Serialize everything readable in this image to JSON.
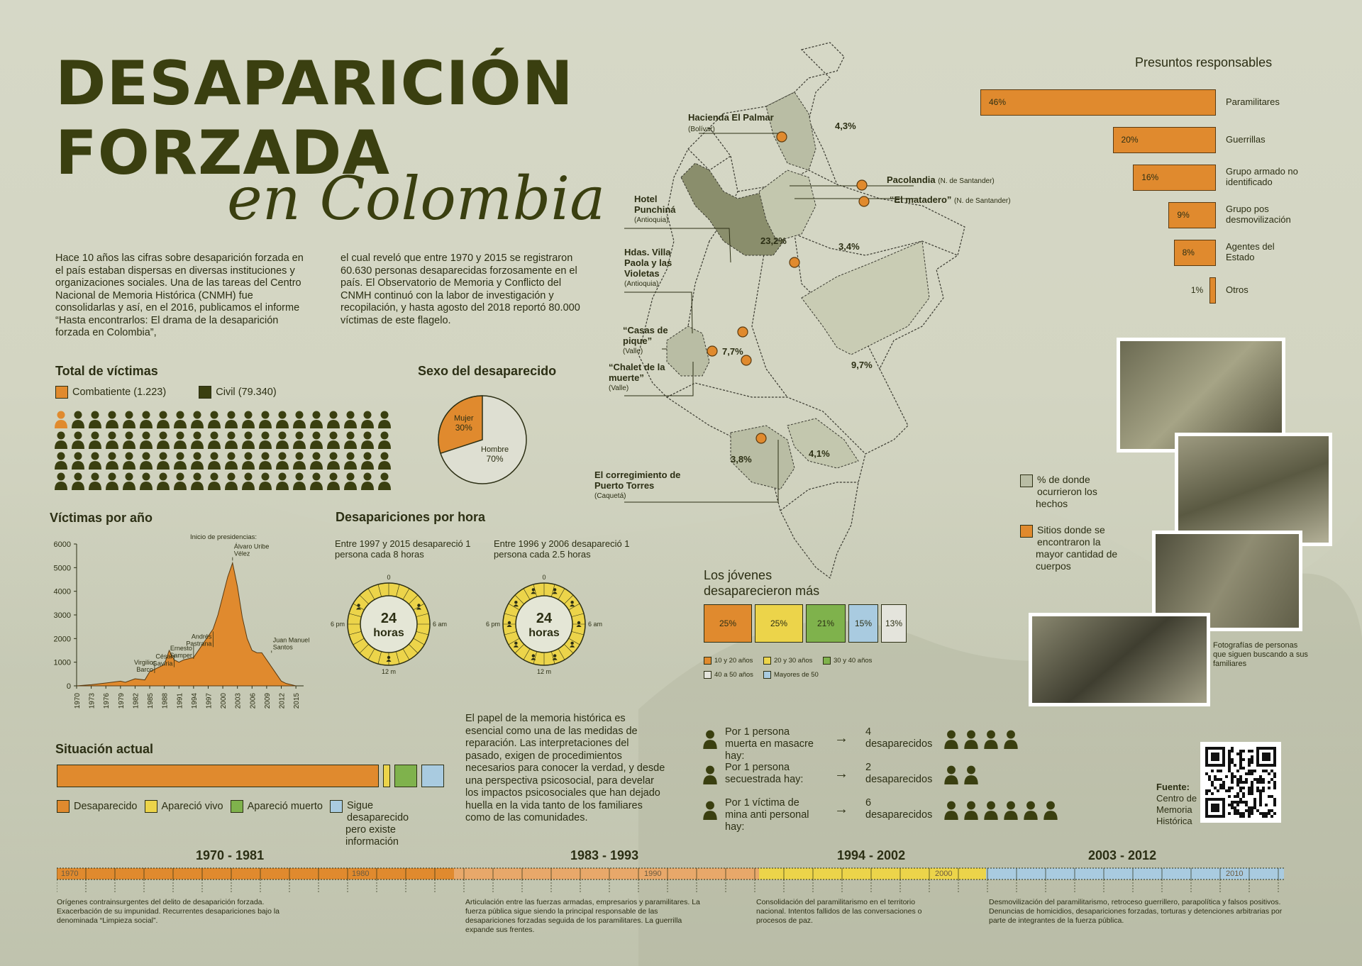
{
  "title": {
    "line1": "DESAPARICIÓN",
    "line2": "FORZADA",
    "line3": "en Colombia"
  },
  "intro": {
    "col1": "Hace 10 años las cifras sobre desaparición forzada en el país estaban dispersas en diversas instituciones y organizaciones sociales. Una de las tareas del Centro Nacional de Memoria Histórica (CNMH) fue consolidarlas y así, en el 2016, publicamos el informe “Hasta encontrarlos: El drama de la desaparición forzada en Colombia”,",
    "col2": "el cual reveló que entre 1970 y 2015 se registraron 60.630 personas desaparecidas forzosamente en el país. El Observatorio de Memoria y Conflicto del CNMH continuó con la labor de investigación y recopilación, y hasta agosto del 2018 reportó 80.000 víctimas de este flagelo."
  },
  "total": {
    "title": "Total de víctimas",
    "combatiente": "Combatiente",
    "combatiente_n": "(1.223)",
    "civil": "Civil",
    "civil_n": "(79.340)"
  },
  "sexo": {
    "title": "Sexo del desaparecido",
    "mujer": "Mujer",
    "mujer_pct": "30%",
    "hombre": "Hombre",
    "hombre_pct": "70%",
    "mujer_value": 30
  },
  "victimas_anio": {
    "title": "Víctimas por año",
    "subtitle": "Inicio de presidencias:",
    "yticks": [
      "6000",
      "5000",
      "4000",
      "3000",
      "2000",
      "1000",
      "0"
    ],
    "xticks": [
      "1970",
      "1973",
      "1976",
      "1979",
      "1982",
      "1985",
      "1988",
      "1991",
      "1994",
      "1997",
      "2000",
      "2003",
      "2006",
      "2009",
      "2012",
      "2015"
    ],
    "presidents": [
      "Virgilio Barco",
      "César Gaviria",
      "Ernesto Samper",
      "Andrés Pastrana",
      "Álvaro Uribe Vélez",
      "Juan Manuel Santos"
    ]
  },
  "chart_data": {
    "type": "area",
    "title": "Víctimas por año",
    "x": [
      1970,
      1973,
      1976,
      1979,
      1980,
      1982,
      1984,
      1985,
      1986,
      1988,
      1989,
      1990,
      1991,
      1992,
      1994,
      1996,
      1998,
      1999,
      2000,
      2001,
      2002,
      2003,
      2004,
      2005,
      2006,
      2007,
      2008,
      2009,
      2010,
      2011,
      2012,
      2013,
      2015
    ],
    "values": [
      0,
      50,
      120,
      200,
      150,
      300,
      250,
      600,
      700,
      900,
      1500,
      1100,
      1000,
      1100,
      1200,
      1800,
      2400,
      3000,
      3800,
      4600,
      5200,
      4200,
      2900,
      2000,
      1500,
      1400,
      1400,
      1100,
      800,
      500,
      200,
      100,
      0
    ],
    "ylim": [
      0,
      6000
    ]
  },
  "por_hora": {
    "title": "Desapariciones por hora",
    "left_text": "Entre 1997 y 2015 desapareció 1 persona cada 8 horas",
    "right_text": "Entre 1996 y 2006 desapareció 1 persona cada 2.5 horas",
    "clock_big": "24",
    "clock_small": "horas",
    "top": "0",
    "left": "6 pm",
    "right": "6 am",
    "bottom": "12 m"
  },
  "responsables": {
    "title": "Presuntos responsables",
    "items": [
      {
        "label": "Paramilitares",
        "pct": "46%",
        "value": 46
      },
      {
        "label": "Guerrillas",
        "pct": "20%",
        "value": 20
      },
      {
        "label": "Grupo armado no identificado",
        "pct": "16%",
        "value": 16
      },
      {
        "label": "Grupo pos desmovilización",
        "pct": "9%",
        "value": 9
      },
      {
        "label": "Agentes del Estado",
        "pct": "8%",
        "value": 8
      },
      {
        "label": "Otros",
        "pct": "1%",
        "value": 1
      }
    ]
  },
  "mapa": {
    "sites": [
      {
        "name": "Hacienda El Palmar",
        "dept": "(Bolívar)"
      },
      {
        "name": "Pacolandia",
        "dept": "(N. de Santander)"
      },
      {
        "name": "“El matadero”",
        "dept": "(N. de Santander)"
      },
      {
        "name": "Hotel Punchiná",
        "dept": "(Antioquia)"
      },
      {
        "name": "Hdas. Villa Paola y las Violetas",
        "dept": "(Antioquia)"
      },
      {
        "name": "“Casas de pique”",
        "dept": "(Valle)"
      },
      {
        "name": "“Chalet de la muerte”",
        "dept": "(Valle)"
      },
      {
        "name": "El corregimiento de Puerto Torres",
        "dept": "(Caquetá)"
      }
    ],
    "pcts": [
      "4,3%",
      "23,2%",
      "3,4%",
      "7,7%",
      "9,7%",
      "3,8%",
      "4,1%"
    ],
    "legend_pct": "% de donde ocurrieron los hechos",
    "legend_sites": "Sitios donde se encontraron la mayor cantidad de cuerpos"
  },
  "jovenes": {
    "title": "Los jóvenes desaparecieron más",
    "items": [
      {
        "pct": "25%",
        "label": "10 y 20 años",
        "color": "#e08a2e"
      },
      {
        "pct": "25%",
        "label": "20 y 30 años",
        "color": "#ecd44a"
      },
      {
        "pct": "21%",
        "label": "30 y 40 años",
        "color": "#7fb24c"
      },
      {
        "pct": "15%",
        "label": "Mayores de 50",
        "color": "#a9cbe0"
      },
      {
        "pct": "13%",
        "label": "40 a 50 años",
        "color": "#e4e4dc"
      }
    ]
  },
  "fotos": {
    "caption": "Fotografías de personas que siguen buscando a sus familiares"
  },
  "situacion": {
    "title": "Situación actual",
    "items": [
      {
        "label": "Desaparecido",
        "color": "#e08a2e"
      },
      {
        "label": "Apareció vivo",
        "color": "#ecd44a"
      },
      {
        "label": "Apareció muerto",
        "color": "#7fb24c"
      },
      {
        "label": "Sigue desaparecido pero existe información",
        "color": "#a9cbe0"
      }
    ]
  },
  "memoria": "El papel de la memoria histórica es esencial como una de las medidas de reparación. Las interpretaciones del pasado, exigen de procedimientos necesarios para conocer la verdad, y desde una perspectiva psicosocial, para develar los impactos psicosociales que han dejado huella en la vida tanto de los familiares como de las comunidades.",
  "ratios": [
    {
      "left": "Por 1 persona muerta en masacre hay:",
      "right": "4 desaparecidos",
      "n": 4
    },
    {
      "left": "Por 1 persona secuestrada hay:",
      "right": "2 desaparecidos",
      "n": 2
    },
    {
      "left": "Por 1 víctima de mina anti personal hay:",
      "right": "6 desaparecidos",
      "n": 6
    }
  ],
  "fuente": {
    "label": "Fuente:",
    "text": "Centro de Memoria Histórica"
  },
  "timeline": {
    "periods": [
      {
        "title": "1970 - 1981",
        "year": "1970",
        "decade": "1980",
        "desc": "Orígenes contrainsurgentes del delito de desaparición forzada. Exacerbación de su impunidad. Recurrentes desapariciones bajo la denominada “Limpieza social”."
      },
      {
        "title": "1983 - 1993",
        "year": "1990",
        "desc": "Articulación entre las fuerzas armadas, empresarios y paramilitares. La fuerza pública sigue siendo la principal responsable de las desapariciones forzadas seguida de los paramilitares. La guerrilla expande sus frentes."
      },
      {
        "title": "1994 - 2002",
        "year": "2000",
        "desc": "Consolidación del paramilitarismo en el territorio nacional. Intentos fallidos de las conversaciones o procesos de paz."
      },
      {
        "title": "2003 - 2012",
        "year": "2010",
        "desc": "Desmovilización del paramilitarismo, retroceso guerrillero, parapolítica y falsos positivos. Denuncias de homicidios, desapariciones forzadas, torturas y detenciones arbitrarias por parte de integrantes de la fuerza pública."
      }
    ]
  }
}
